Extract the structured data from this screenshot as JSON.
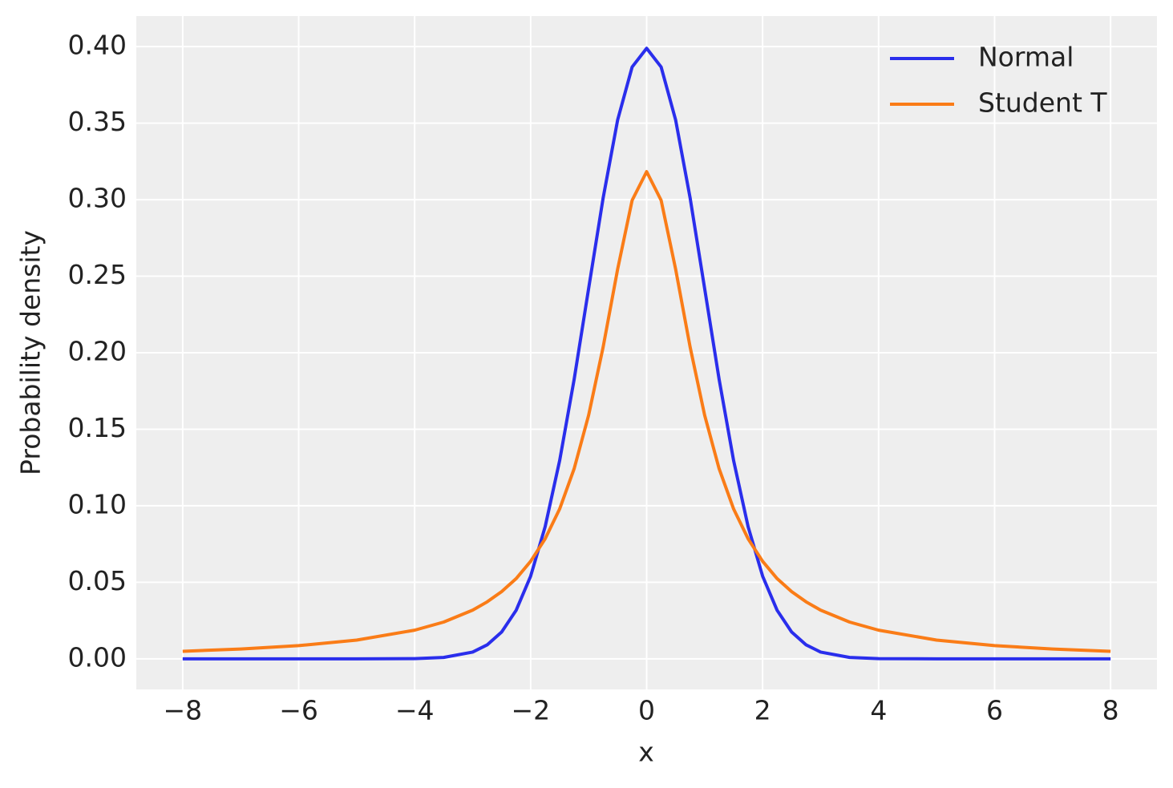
{
  "chart_data": {
    "type": "line",
    "x_label": "x",
    "y_label": "Probability density",
    "x": [
      -8,
      -7,
      -6,
      -5,
      -4,
      -3.5,
      -3,
      -2.75,
      -2.5,
      -2.25,
      -2,
      -1.75,
      -1.5,
      -1.25,
      -1,
      -0.75,
      -0.5,
      -0.25,
      0,
      0.25,
      0.5,
      0.75,
      1,
      1.25,
      1.5,
      1.75,
      2,
      2.25,
      2.5,
      2.75,
      3,
      3.5,
      4,
      5,
      6,
      7,
      8
    ],
    "series": [
      {
        "name": "Normal",
        "color": "#2a2eec",
        "values": [
          0,
          0,
          0,
          0,
          0.0001,
          0.0009,
          0.0044,
          0.0091,
          0.0175,
          0.0317,
          0.054,
          0.0863,
          0.1295,
          0.1826,
          0.242,
          0.3011,
          0.3521,
          0.3867,
          0.3989,
          0.3867,
          0.3521,
          0.3011,
          0.242,
          0.1826,
          0.1295,
          0.0863,
          0.054,
          0.0317,
          0.0175,
          0.0091,
          0.0044,
          0.0009,
          0.0001,
          0,
          0,
          0,
          0
        ]
      },
      {
        "name": "Student T",
        "color": "#fa7c17",
        "values": [
          0.0049,
          0.0064,
          0.0086,
          0.0122,
          0.0187,
          0.024,
          0.0318,
          0.0372,
          0.0439,
          0.0524,
          0.0637,
          0.0784,
          0.0979,
          0.1242,
          0.1592,
          0.2037,
          0.2546,
          0.2996,
          0.3183,
          0.2996,
          0.2546,
          0.2037,
          0.1592,
          0.1242,
          0.0979,
          0.0784,
          0.0637,
          0.0524,
          0.0439,
          0.0372,
          0.0318,
          0.024,
          0.0187,
          0.0122,
          0.0086,
          0.0064,
          0.0049
        ]
      }
    ],
    "xlim": [
      -8.8,
      8.8
    ],
    "ylim": [
      -0.02,
      0.42
    ],
    "xticks": [
      {
        "value": -8,
        "label": "−8"
      },
      {
        "value": -6,
        "label": "−6"
      },
      {
        "value": -4,
        "label": "−4"
      },
      {
        "value": -2,
        "label": "−2"
      },
      0,
      2,
      4,
      6,
      8
    ],
    "yticks": [
      {
        "value": 0,
        "label": "0.00"
      },
      0.05,
      {
        "value": 0.1,
        "label": "0.10"
      },
      0.15,
      {
        "value": 0.2,
        "label": "0.20"
      },
      0.25,
      {
        "value": 0.3,
        "label": "0.30"
      },
      0.35,
      {
        "value": 0.4,
        "label": "0.40"
      }
    ],
    "grid": true,
    "legend": "upper right"
  }
}
